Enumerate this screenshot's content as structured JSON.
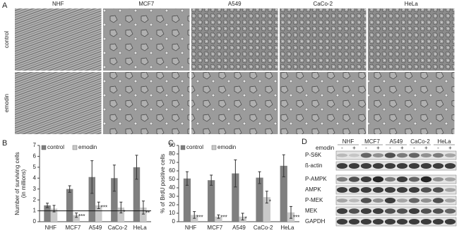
{
  "panel_labels": [
    "A",
    "B",
    "C",
    "D"
  ],
  "panel_a": {
    "columns": [
      "NHF",
      "MCF7",
      "A549",
      "CaCo-2",
      "HeLa"
    ],
    "rows": [
      "control",
      "emodin"
    ]
  },
  "chart_data": [
    {
      "type": "bar",
      "ylabel": [
        "Number of surviving cells",
        "(in millions)"
      ],
      "categories": [
        "NHF",
        "MCF7",
        "A549",
        "CaCo-2",
        "HeLa"
      ],
      "series": [
        {
          "name": "control",
          "color": "#7f7f7f",
          "values": [
            1.5,
            3.0,
            4.1,
            4.0,
            5.0
          ],
          "errors": [
            0.2,
            0.3,
            1.5,
            1.2,
            1.1
          ]
        },
        {
          "name": "emodin",
          "color": "#c9c9c9",
          "values": [
            1.2,
            0.6,
            1.5,
            1.3,
            1.3
          ],
          "errors": [
            0.3,
            0.2,
            0.3,
            0.5,
            0.6
          ],
          "significance": [
            null,
            "***",
            "***",
            "*",
            "**"
          ]
        }
      ],
      "ylim": [
        0,
        7
      ],
      "yticks": [
        0,
        1,
        2,
        3,
        4,
        5,
        6,
        7
      ],
      "reference_line": 1,
      "legend": "upper left"
    },
    {
      "type": "bar",
      "ylabel": [
        "% of BrdU positive cells"
      ],
      "categories": [
        "NHF",
        "MCF7",
        "A549",
        "CaCo-2",
        "HeLa"
      ],
      "series": [
        {
          "name": "control",
          "color": "#7f7f7f",
          "values": [
            51,
            49,
            57,
            52,
            66
          ],
          "errors": [
            8,
            6,
            16,
            7,
            13
          ]
        },
        {
          "name": "emodin",
          "color": "#c9c9c9",
          "values": [
            8,
            6,
            6,
            29,
            11
          ],
          "errors": [
            4,
            2,
            4,
            7,
            7
          ],
          "significance": [
            "***",
            "***",
            "*",
            "*",
            "***"
          ]
        }
      ],
      "ylim": [
        0,
        90
      ],
      "yticks": [
        0,
        10,
        20,
        30,
        40,
        50,
        60,
        70,
        80,
        90
      ],
      "legend": "upper left"
    }
  ],
  "panel_d": {
    "treatment_label": "emodin",
    "cell_lines": [
      "NHF",
      "MCF7",
      "A549",
      "CaCo-2",
      "HeLa"
    ],
    "lane_signs": [
      "-",
      "+",
      "-",
      "+",
      "-",
      "+",
      "-",
      "+",
      "-",
      "+"
    ],
    "proteins": [
      "P-S6K",
      "ß-actin",
      "P-AMPK",
      "AMPK",
      "P-MEK",
      "MEK",
      "GAPDH"
    ]
  }
}
